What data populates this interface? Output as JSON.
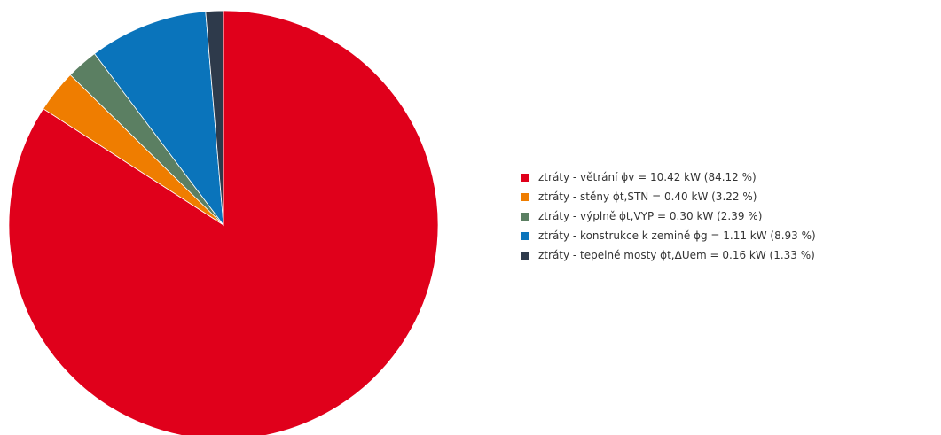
{
  "chart_data": {
    "type": "pie",
    "title": "",
    "legend_position": "right",
    "start_angle": "12 o'clock",
    "direction": "clockwise",
    "slices": [
      {
        "label": "ztráty - větrání ϕv = 10.42 kW (84.12 %)",
        "value": 84.12,
        "color": "#e0001b"
      },
      {
        "label": "ztráty - stěny ϕt,STN = 0.40 kW (3.22 %)",
        "value": 3.22,
        "color": "#ef7d00"
      },
      {
        "label": "ztráty - výplně ϕt,VYP = 0.30 kW (2.39 %)",
        "value": 2.39,
        "color": "#5b7f62"
      },
      {
        "label": "ztráty - konstrukce k zemině ϕg = 1.11 kW (8.93 %)",
        "value": 8.93,
        "color": "#0a74bb"
      },
      {
        "label": "ztráty - tepelné mosty ϕt,ΔUem = 0.16 kW (1.33 %)",
        "value": 1.33,
        "color": "#2e3a4b"
      }
    ]
  }
}
